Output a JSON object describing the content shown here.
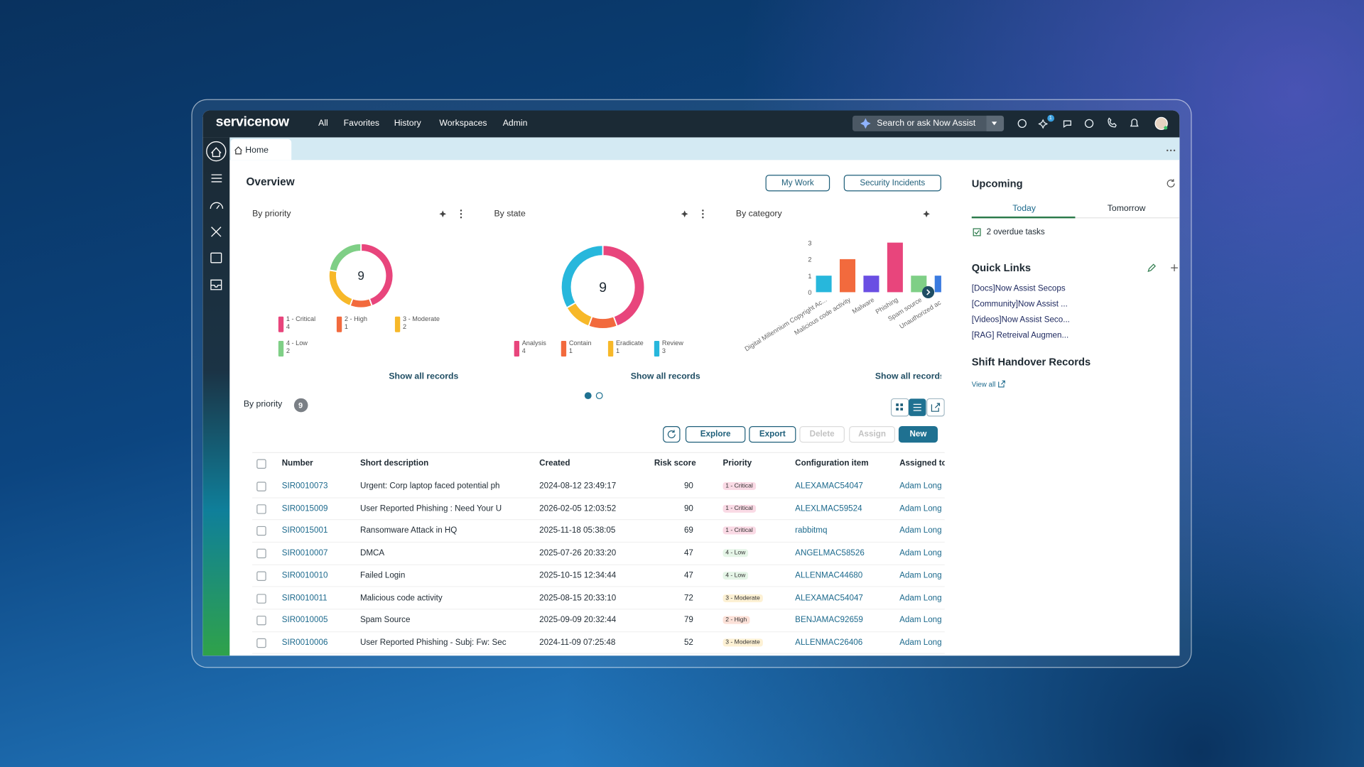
{
  "nav": {
    "logo": "servicenow",
    "menu": [
      "All",
      "Favorites",
      "History",
      "Workspaces",
      "Admin"
    ],
    "search": "Search or ask Now Assist",
    "badge": "1"
  },
  "tab": "Home",
  "overview": {
    "title": "Overview",
    "filters": [
      "My Work",
      "Security Incidents"
    ]
  },
  "widgets": [
    {
      "title": "By priority",
      "type": "donut",
      "total": 9,
      "segments": [
        {
          "label": "1 - Critical",
          "value": 4,
          "color": "#e8457c"
        },
        {
          "label": "2 - High",
          "value": 1,
          "color": "#f26a3d"
        },
        {
          "label": "3 - Moderate",
          "value": 2,
          "color": "#f7b829"
        },
        {
          "label": "4 - Low",
          "value": 2,
          "color": "#7fcf86"
        }
      ],
      "link": "Show all records"
    },
    {
      "title": "By state",
      "type": "donut",
      "total": 9,
      "segments": [
        {
          "label": "Analysis",
          "value": 4,
          "color": "#e8457c"
        },
        {
          "label": "Contain",
          "value": 1,
          "color": "#f26a3d"
        },
        {
          "label": "Eradicate",
          "value": 1,
          "color": "#f7b829"
        },
        {
          "label": "Review",
          "value": 3,
          "color": "#27b7dc"
        }
      ],
      "link": "Show all records"
    },
    {
      "title": "By category",
      "type": "bar",
      "categories": [
        "Digital Millennium Copyright Ac...",
        "Malicious code activity",
        "Malware",
        "Phishing",
        "Spam source",
        "Unauthorized ac..."
      ],
      "values": [
        1,
        2,
        1,
        3,
        1,
        1
      ],
      "colors": [
        "#27b7dc",
        "#f26a3d",
        "#6a4fe3",
        "#e8457c",
        "#7fcf86",
        "#3b7be0"
      ],
      "ylim": [
        0,
        3
      ],
      "yticks": [
        0,
        1,
        2,
        3
      ],
      "link": "Show all records"
    }
  ],
  "list": {
    "title": "By priority",
    "count": 9,
    "actions": [
      "Explore",
      "Export",
      "Delete",
      "Assign",
      "New"
    ],
    "columns": [
      "Number",
      "Short description",
      "Created",
      "Risk score",
      "Priority",
      "Configuration item",
      "Assigned to"
    ],
    "rows": [
      [
        "SIR0010073",
        "Urgent: Corp laptop faced potential ph",
        "2024-08-12 23:49:17",
        90,
        "1 - Critical",
        "ALEXAMAC54047",
        "Adam Long"
      ],
      [
        "SIR0015009",
        "User Reported Phishing : Need Your U",
        "2026-02-05 12:03:52",
        90,
        "1 - Critical",
        "ALEXLMAC59524",
        "Adam Long"
      ],
      [
        "SIR0015001",
        "Ransomware Attack in HQ",
        "2025-11-18 05:38:05",
        69,
        "1 - Critical",
        "rabbitmq",
        "Adam Long"
      ],
      [
        "SIR0010007",
        "DMCA",
        "2025-07-26 20:33:20",
        47,
        "4 - Low",
        "ANGELMAC58526",
        "Adam Long"
      ],
      [
        "SIR0010010",
        "Failed Login",
        "2025-10-15 12:34:44",
        47,
        "4 - Low",
        "ALLENMAC44680",
        "Adam Long"
      ],
      [
        "SIR0010011",
        "Malicious code activity",
        "2025-08-15 20:33:10",
        72,
        "3 - Moderate",
        "ALEXAMAC54047",
        "Adam Long"
      ],
      [
        "SIR0010005",
        "Spam Source",
        "2025-09-09 20:32:44",
        79,
        "2 - High",
        "BENJAMAC92659",
        "Adam Long"
      ],
      [
        "SIR0010006",
        "User Reported Phishing - Subj: Fw: Sec",
        "2024-11-09 07:25:48",
        52,
        "3 - Moderate",
        "ALLENMAC26406",
        "Adam Long"
      ]
    ]
  },
  "upcoming": {
    "title": "Upcoming",
    "tabs": [
      "Today",
      "Tomorrow"
    ],
    "task": "2 overdue tasks"
  },
  "quick_links": {
    "title": "Quick Links",
    "links": [
      "[Docs]Now Assist Secops",
      "[Community]Now Assist ...",
      "[Videos]Now Assist Seco...",
      "[RAG] Retreival Augmen..."
    ]
  },
  "handover": {
    "title": "Shift Handover Records",
    "link": "View all"
  }
}
